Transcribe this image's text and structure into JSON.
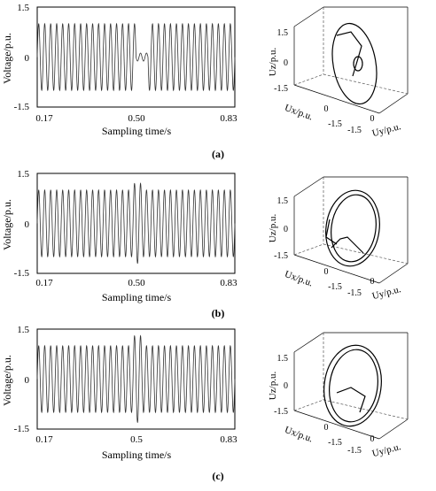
{
  "panels": [
    {
      "label": "(a)",
      "disturbance": "sag"
    },
    {
      "label": "(b)",
      "disturbance": "swell"
    },
    {
      "label": "(c)",
      "disturbance": "swell-notch"
    }
  ],
  "colors": {
    "line": "#000000",
    "axis": "#000000",
    "wave": "#333333",
    "dashed": "#555555"
  },
  "chart_data": [
    {
      "type": "line",
      "xlabel": "Sampling time/s",
      "ylabel": "Voltage/p.u.",
      "xticks": [
        "0.17",
        "0.50",
        "0.83"
      ],
      "yticks": [
        "1.5",
        "0",
        "-1.5"
      ],
      "xlim": [
        0.17,
        0.83
      ],
      "ylim": [
        -1.5,
        1.5
      ],
      "series": [
        {
          "amplitude": 1.0,
          "cycles": 33,
          "disturbance_start": 0.5,
          "disturbance_end": 0.54,
          "disturbance_amplitude": 0.12
        }
      ]
    },
    {
      "type": "scatter",
      "projection": "3d",
      "xlabel": "Ux/p.u.",
      "ylabel": "Uy/p.u.",
      "zlabel": "Uz/p.u.",
      "ticks": [
        "1.5",
        "0",
        "-1.5"
      ],
      "xticks": [
        "0",
        "-1.5"
      ],
      "yticks": [
        "-1.5",
        "0"
      ],
      "lim": [
        -1.5,
        1.5
      ]
    },
    {
      "type": "line",
      "xlabel": "Sampling time/s",
      "ylabel": "Voltage/p.u.",
      "xticks": [
        "0.17",
        "0.50",
        "0.83"
      ],
      "yticks": [
        "1.5",
        "0",
        "-1.5"
      ],
      "xlim": [
        0.17,
        0.83
      ],
      "ylim": [
        -1.5,
        1.5
      ],
      "series": [
        {
          "amplitude": 1.0,
          "cycles": 33,
          "disturbance_start": 0.49,
          "disturbance_end": 0.52,
          "disturbance_amplitude": 1.2
        }
      ]
    },
    {
      "type": "scatter",
      "projection": "3d",
      "xlabel": "Ux/p.u.",
      "ylabel": "Uy/p.u.",
      "zlabel": "Uz/p.u.",
      "ticks": [
        "1.5",
        "0",
        "-1.5"
      ],
      "xticks": [
        "0",
        "-1.5"
      ],
      "yticks": [
        "-1.5",
        "0"
      ],
      "lim": [
        -1.5,
        1.5
      ]
    },
    {
      "type": "line",
      "xlabel": "Sampling time/s",
      "ylabel": "Voltage/p.u.",
      "xticks": [
        "0.17",
        "0.5",
        "0.83"
      ],
      "yticks": [
        "1.5",
        "0",
        "-1.5"
      ],
      "xlim": [
        0.17,
        0.83
      ],
      "ylim": [
        -1.5,
        1.5
      ],
      "series": [
        {
          "amplitude": 1.0,
          "cycles": 33,
          "disturbance_start": 0.49,
          "disturbance_end": 0.52,
          "disturbance_amplitude": 1.3
        }
      ]
    },
    {
      "type": "scatter",
      "projection": "3d",
      "xlabel": "Ux/p.u.",
      "ylabel": "Uy/p.u.",
      "zlabel": "Uz/p.u.",
      "ticks": [
        "1.5",
        "0",
        "-1.5"
      ],
      "xticks": [
        "0",
        "-1.5"
      ],
      "yticks": [
        "-1.5",
        "0"
      ],
      "lim": [
        -1.5,
        1.5
      ]
    }
  ]
}
